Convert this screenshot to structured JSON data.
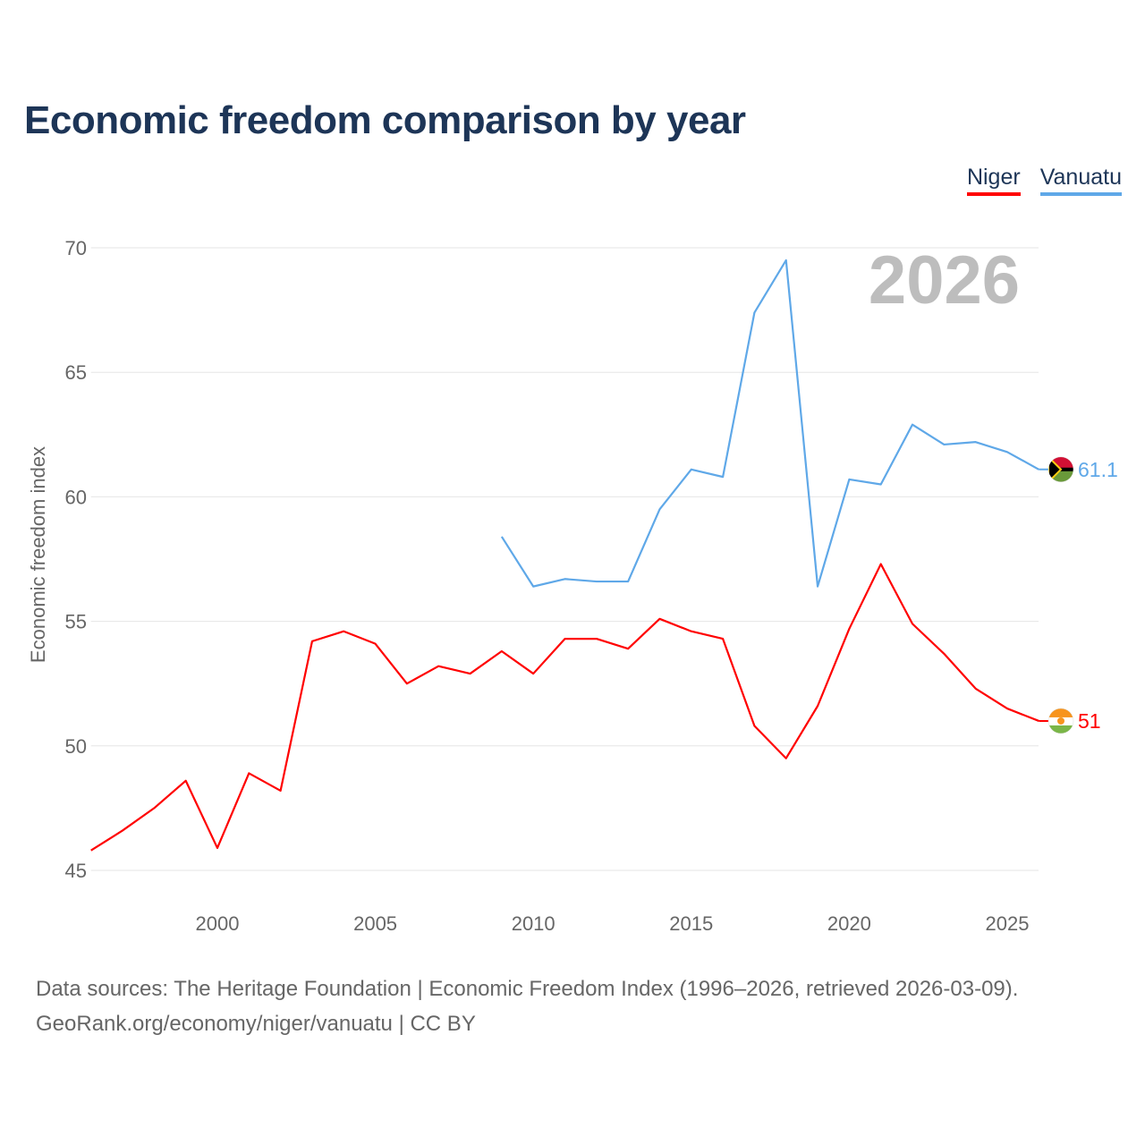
{
  "title": "Economic freedom comparison by year",
  "year_watermark": "2026",
  "source_line1": "Data sources: The Heritage Foundation | Economic Freedom Index (1996–2026, retrieved 2026-03-09).",
  "source_line2": "GeoRank.org/economy/niger/vanuatu | CC BY",
  "chart_data": {
    "type": "line",
    "title": "Economic freedom comparison by year",
    "xlabel": "",
    "ylabel": "Economic freedom index",
    "xlim": [
      1996,
      2026
    ],
    "ylim": [
      45,
      70
    ],
    "yticks": [
      45,
      50,
      55,
      60,
      65,
      70
    ],
    "xticks": [
      2000,
      2005,
      2010,
      2015,
      2020,
      2025
    ],
    "grid": true,
    "legend_position": "top-right",
    "series": [
      {
        "name": "Niger",
        "color": "#ff0000",
        "end_label": "51",
        "x": [
          1996,
          1997,
          1998,
          1999,
          2000,
          2001,
          2002,
          2003,
          2004,
          2005,
          2006,
          2007,
          2008,
          2009,
          2010,
          2011,
          2012,
          2013,
          2014,
          2015,
          2016,
          2017,
          2018,
          2019,
          2020,
          2021,
          2022,
          2023,
          2024,
          2025,
          2026
        ],
        "values": [
          45.8,
          46.6,
          47.5,
          48.6,
          45.9,
          48.9,
          48.2,
          54.2,
          54.6,
          54.1,
          52.5,
          53.2,
          52.9,
          53.8,
          52.9,
          54.3,
          54.3,
          53.9,
          55.1,
          54.6,
          54.3,
          50.8,
          49.5,
          51.6,
          54.7,
          57.3,
          54.9,
          53.7,
          52.3,
          51.5,
          51.0
        ]
      },
      {
        "name": "Vanuatu",
        "color": "#5fa8e8",
        "end_label": "61.1",
        "x": [
          2009,
          2010,
          2011,
          2012,
          2013,
          2014,
          2015,
          2016,
          2017,
          2018,
          2019,
          2020,
          2021,
          2022,
          2023,
          2024,
          2025,
          2026
        ],
        "values": [
          58.4,
          56.4,
          56.7,
          56.6,
          56.6,
          59.5,
          61.1,
          60.8,
          67.4,
          69.5,
          56.4,
          60.7,
          60.5,
          62.9,
          62.1,
          62.2,
          61.8,
          61.1
        ]
      }
    ]
  }
}
